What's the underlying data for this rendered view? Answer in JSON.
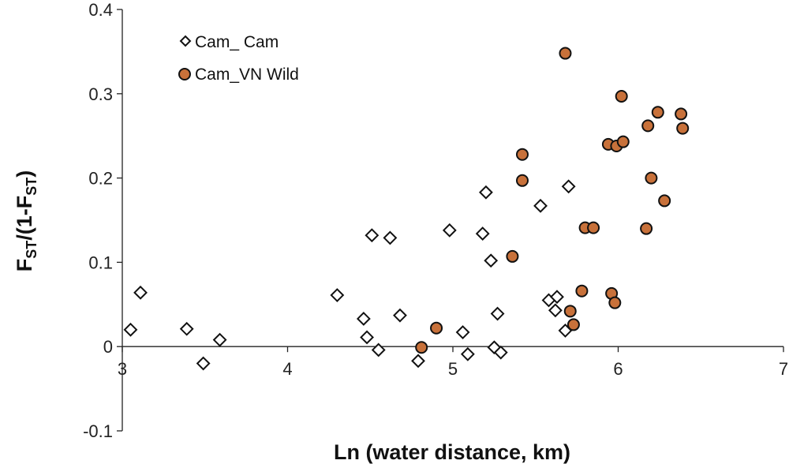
{
  "chart_data": {
    "type": "scatter",
    "xlabel": "Ln (water distance, km)",
    "ylabel": {
      "main": "F",
      "sub1": "ST",
      "mid": "/(1-F",
      "sub2": "ST",
      "end": ")"
    },
    "xlim": [
      3,
      7
    ],
    "ylim": [
      -0.1,
      0.4
    ],
    "xticks": [
      "3",
      "4",
      "5",
      "6",
      "7"
    ],
    "yticks": [
      "-0.1",
      "0",
      "0.1",
      "0.2",
      "0.3",
      "0.4"
    ],
    "legend_position": "top-left",
    "series": [
      {
        "name": "Cam_ Cam",
        "marker": "diamond",
        "color": "#ffffff",
        "edge": "#111111",
        "points": [
          [
            3.05,
            0.02
          ],
          [
            3.11,
            0.064
          ],
          [
            3.39,
            0.021
          ],
          [
            3.49,
            -0.02
          ],
          [
            3.59,
            0.008
          ],
          [
            4.3,
            0.061
          ],
          [
            4.46,
            0.033
          ],
          [
            4.48,
            0.011
          ],
          [
            4.51,
            0.132
          ],
          [
            4.55,
            -0.004
          ],
          [
            4.62,
            0.129
          ],
          [
            4.68,
            0.037
          ],
          [
            4.79,
            -0.017
          ],
          [
            4.98,
            0.138
          ],
          [
            5.06,
            0.017
          ],
          [
            5.09,
            -0.009
          ],
          [
            5.18,
            0.134
          ],
          [
            5.2,
            0.183
          ],
          [
            5.23,
            0.102
          ],
          [
            5.25,
            -0.001
          ],
          [
            5.27,
            0.039
          ],
          [
            5.29,
            -0.007
          ],
          [
            5.53,
            0.167
          ],
          [
            5.58,
            0.055
          ],
          [
            5.62,
            0.043
          ],
          [
            5.63,
            0.059
          ],
          [
            5.68,
            0.019
          ],
          [
            5.7,
            0.19
          ]
        ]
      },
      {
        "name": "Cam_VN Wild",
        "marker": "circle",
        "color": "#c8713a",
        "edge": "#111111",
        "points": [
          [
            4.81,
            -0.001
          ],
          [
            4.9,
            0.022
          ],
          [
            5.36,
            0.107
          ],
          [
            5.42,
            0.197
          ],
          [
            5.42,
            0.228
          ],
          [
            5.68,
            0.348
          ],
          [
            5.71,
            0.042
          ],
          [
            5.73,
            0.026
          ],
          [
            5.78,
            0.066
          ],
          [
            5.8,
            0.141
          ],
          [
            5.85,
            0.141
          ],
          [
            5.94,
            0.24
          ],
          [
            5.96,
            0.063
          ],
          [
            5.98,
            0.052
          ],
          [
            5.99,
            0.238
          ],
          [
            6.02,
            0.297
          ],
          [
            6.03,
            0.243
          ],
          [
            6.17,
            0.14
          ],
          [
            6.18,
            0.262
          ],
          [
            6.2,
            0.2
          ],
          [
            6.24,
            0.278
          ],
          [
            6.28,
            0.173
          ],
          [
            6.38,
            0.276
          ],
          [
            6.39,
            0.259
          ]
        ]
      }
    ]
  },
  "colors": {
    "axis": "#222222",
    "marker_edge": "#111111",
    "wild_fill": "#c8713a",
    "cam_fill": "#ffffff"
  }
}
